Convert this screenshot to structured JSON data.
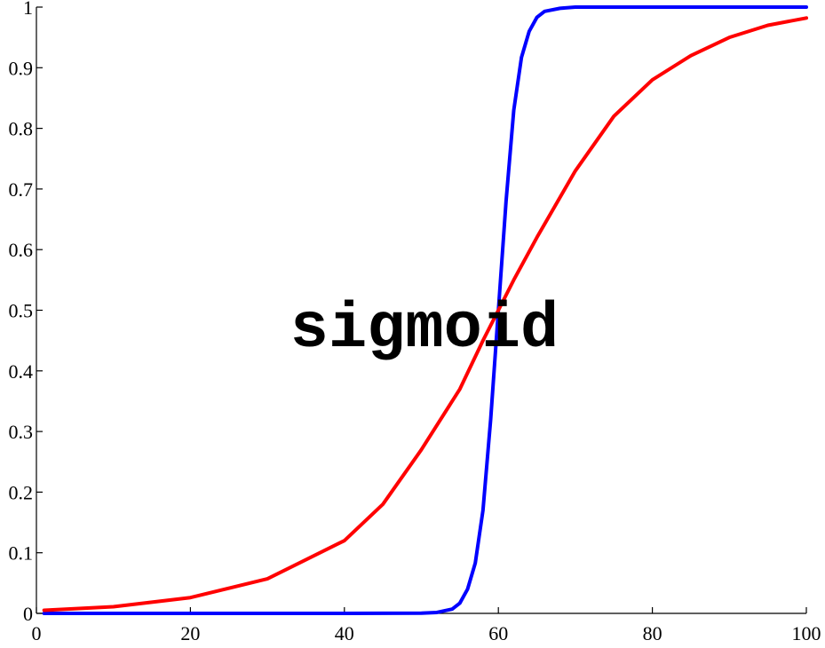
{
  "chart_data": {
    "type": "line",
    "title": "",
    "xlabel": "",
    "ylabel": "",
    "xlim": [
      0,
      100
    ],
    "ylim": [
      0,
      1
    ],
    "xticks": [
      0,
      20,
      40,
      60,
      80,
      100
    ],
    "xtick_labels": [
      "0",
      "20",
      "40",
      "60",
      "80",
      "100"
    ],
    "yticks": [
      0,
      0.1,
      0.2,
      0.3,
      0.4,
      0.5,
      0.6,
      0.7,
      0.8,
      0.9,
      1
    ],
    "ytick_labels": [
      "0",
      "0.1",
      "0.2",
      "0.3",
      "0.4",
      "0.5",
      "0.6",
      "0.7",
      "0.8",
      "0.9",
      "1"
    ],
    "grid": false,
    "legend": "none",
    "annotation": "sigmoid",
    "series": [
      {
        "color": "#0000ff",
        "x": [
          1,
          10,
          20,
          30,
          40,
          50,
          52,
          54,
          55,
          56,
          57,
          58,
          59,
          60,
          61,
          62,
          63,
          64,
          65,
          66,
          68,
          70,
          80,
          90,
          100
        ],
        "y": [
          0,
          0,
          0,
          0,
          0,
          0.0003,
          0.0015,
          0.007,
          0.017,
          0.04,
          0.083,
          0.17,
          0.32,
          0.5,
          0.68,
          0.83,
          0.917,
          0.96,
          0.983,
          0.993,
          0.998,
          1,
          1,
          1,
          1
        ]
      },
      {
        "color": "#ff0000",
        "x": [
          1,
          10,
          20,
          30,
          40,
          45,
          50,
          55,
          58,
          60,
          62,
          65,
          70,
          75,
          80,
          85,
          90,
          95,
          100
        ],
        "y": [
          0.0052,
          0.011,
          0.026,
          0.057,
          0.12,
          0.18,
          0.27,
          0.37,
          0.45,
          0.5,
          0.55,
          0.62,
          0.73,
          0.82,
          0.88,
          0.92,
          0.95,
          0.97,
          0.982
        ]
      }
    ]
  }
}
